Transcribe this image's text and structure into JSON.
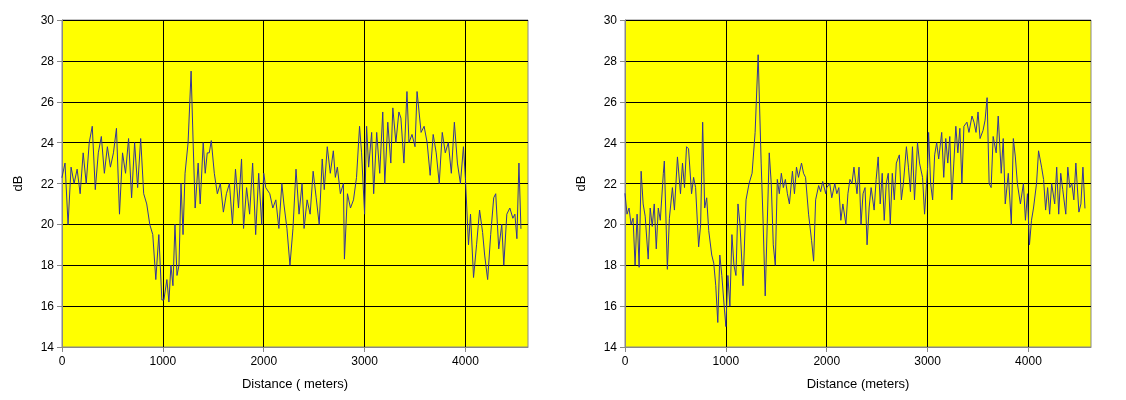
{
  "chart_data": [
    {
      "type": "line",
      "xlabel": "Distance ( meters)",
      "ylabel": "dB",
      "xlim": [
        0,
        4620
      ],
      "xticks": [
        0,
        1000,
        2000,
        3000,
        4000
      ],
      "ylim": [
        14,
        30
      ],
      "yticks": [
        14,
        16,
        18,
        20,
        22,
        24,
        26,
        28,
        30
      ],
      "grid": true,
      "marker": "none",
      "line_style": "solid",
      "series": [
        {
          "color": "#333399",
          "x": [
            0,
            30,
            60,
            90,
            120,
            150,
            180,
            210,
            240,
            270,
            300,
            330,
            360,
            390,
            420,
            450,
            480,
            510,
            540,
            570,
            600,
            630,
            660,
            690,
            720,
            750,
            780,
            810,
            840,
            870,
            900,
            930,
            960,
            990,
            1010,
            1040,
            1060,
            1080,
            1100,
            1120,
            1140,
            1160,
            1180,
            1200,
            1220,
            1250,
            1280,
            1300,
            1320,
            1350,
            1370,
            1400,
            1420,
            1440,
            1460,
            1480,
            1510,
            1540,
            1570,
            1600,
            1630,
            1660,
            1690,
            1720,
            1750,
            1780,
            1800,
            1830,
            1860,
            1890,
            1920,
            1950,
            1980,
            2000,
            2020,
            2060,
            2090,
            2120,
            2150,
            2180,
            2200,
            2230,
            2260,
            2290,
            2320,
            2350,
            2380,
            2400,
            2430,
            2460,
            2490,
            2520,
            2550,
            2580,
            2600,
            2630,
            2660,
            2690,
            2710,
            2730,
            2760,
            2790,
            2800,
            2830,
            2860,
            2890,
            2920,
            2950,
            2970,
            3000,
            3020,
            3040,
            3070,
            3090,
            3120,
            3150,
            3180,
            3200,
            3230,
            3260,
            3280,
            3310,
            3340,
            3360,
            3390,
            3420,
            3440,
            3470,
            3500,
            3520,
            3560,
            3590,
            3620,
            3650,
            3680,
            3710,
            3740,
            3770,
            3800,
            3830,
            3860,
            3890,
            3920,
            3950,
            3980,
            4000,
            4030,
            4050,
            4080,
            4110,
            4140,
            4170,
            4190,
            4220,
            4250,
            4280,
            4300,
            4330,
            4360,
            4380,
            4410,
            4440,
            4470,
            4490,
            4510,
            4530,
            4550
          ],
          "values": [
            22.3,
            23,
            20,
            22.8,
            22,
            22.7,
            21.5,
            23.5,
            22,
            24,
            24.8,
            21.7,
            23.5,
            24.3,
            22.5,
            23.8,
            22.8,
            23.5,
            24.7,
            20.5,
            23.5,
            22.5,
            24.2,
            21.3,
            24,
            21.8,
            24.2,
            21.5,
            21,
            20,
            19.5,
            17.3,
            19.5,
            16.3,
            16.3,
            17.3,
            16.2,
            18,
            17,
            20,
            17.5,
            18,
            22,
            19.5,
            22.5,
            24,
            27.5,
            24,
            20.8,
            23,
            21,
            24,
            22.5,
            23.5,
            23.5,
            24.1,
            22.5,
            21.5,
            22,
            20.6,
            21.5,
            22,
            20,
            22.7,
            20.8,
            23.2,
            19.8,
            21.8,
            20.5,
            23,
            19.5,
            22.5,
            20,
            22.5,
            21.8,
            21.5,
            20.8,
            21.2,
            19.8,
            22,
            21,
            19.8,
            18,
            19.8,
            22.7,
            20.5,
            22,
            19.8,
            21.2,
            20.5,
            22.6,
            21.3,
            20,
            23.2,
            21.7,
            23.8,
            22.5,
            23.6,
            22.3,
            22.8,
            21.5,
            22,
            18.3,
            21.5,
            20.8,
            21.2,
            22.3,
            24.8,
            23.5,
            20.5,
            24.8,
            22.8,
            24.5,
            21.5,
            24.5,
            22.5,
            25.5,
            22,
            25,
            23,
            25.7,
            24,
            25.5,
            25.2,
            23,
            26.5,
            24,
            24.4,
            23.8,
            26.5,
            24.5,
            24.8,
            24,
            22.4,
            24.4,
            23.5,
            22,
            24.5,
            23.5,
            24,
            22.5,
            25,
            23,
            22,
            23.8,
            22.2,
            19,
            20.5,
            17.4,
            19,
            20.7,
            19.6,
            18.5,
            17.3,
            19.5,
            21.3,
            21.5,
            18.8,
            20,
            18,
            20.5,
            20.8,
            20.3,
            20.5,
            19.3,
            23,
            19.8
          ]
        }
      ]
    },
    {
      "type": "line",
      "xlabel": "Distance (meters)",
      "ylabel": "dB",
      "xlim": [
        0,
        4620
      ],
      "xticks": [
        0,
        1000,
        2000,
        3000,
        4000
      ],
      "ylim": [
        14,
        30
      ],
      "yticks": [
        14,
        16,
        18,
        20,
        22,
        24,
        26,
        28,
        30
      ],
      "grid": true,
      "marker": "none",
      "line_style": "solid",
      "series": [
        {
          "color": "#333399",
          "x": [
            0,
            20,
            40,
            60,
            80,
            100,
            120,
            140,
            160,
            180,
            200,
            230,
            250,
            270,
            290,
            310,
            330,
            350,
            380,
            390,
            420,
            440,
            470,
            490,
            520,
            550,
            570,
            590,
            610,
            630,
            660,
            680,
            700,
            730,
            750,
            770,
            790,
            810,
            830,
            860,
            880,
            900,
            920,
            940,
            960,
            980,
            1000,
            1020,
            1040,
            1060,
            1080,
            1100,
            1120,
            1140,
            1170,
            1200,
            1230,
            1260,
            1290,
            1320,
            1350,
            1370,
            1390,
            1410,
            1430,
            1450,
            1470,
            1490,
            1510,
            1530,
            1550,
            1570,
            1590,
            1610,
            1630,
            1660,
            1680,
            1700,
            1720,
            1750,
            1770,
            1790,
            1820,
            1850,
            1870,
            1890,
            1920,
            1940,
            1960,
            1990,
            2000,
            2030,
            2050,
            2080,
            2100,
            2120,
            2140,
            2160,
            2190,
            2210,
            2230,
            2250,
            2270,
            2300,
            2320,
            2340,
            2360,
            2380,
            2400,
            2420,
            2440,
            2470,
            2490,
            2510,
            2530,
            2550,
            2570,
            2590,
            2610,
            2630,
            2650,
            2670,
            2690,
            2720,
            2740,
            2760,
            2790,
            2810,
            2830,
            2850,
            2870,
            2900,
            2920,
            2950,
            2970,
            3000,
            3010,
            3030,
            3050,
            3070,
            3090,
            3110,
            3140,
            3160,
            3180,
            3200,
            3220,
            3240,
            3260,
            3280,
            3300,
            3320,
            3340,
            3360,
            3390,
            3410,
            3440,
            3460,
            3480,
            3500,
            3520,
            3550,
            3570,
            3590,
            3610,
            3630,
            3650,
            3680,
            3700,
            3730,
            3750,
            3770,
            3800,
            3830,
            3850,
            3870,
            3890,
            3920,
            3950,
            3970,
            3990,
            4010,
            4030,
            4050,
            4080,
            4100,
            4130,
            4150,
            4170,
            4190,
            4210,
            4230,
            4260,
            4280,
            4300,
            4320,
            4340,
            4370,
            4390,
            4410,
            4430,
            4450,
            4470,
            4500,
            4520,
            4540,
            4560
          ],
          "values": [
            21.5,
            20.5,
            20.8,
            20,
            20.3,
            18,
            20.5,
            17.9,
            22.6,
            21,
            20.4,
            18.3,
            20.8,
            19.9,
            21,
            18.8,
            20.8,
            20.2,
            22.5,
            23.1,
            17.8,
            20.3,
            21.8,
            20.7,
            23.3,
            21.5,
            23,
            21.8,
            23.8,
            23.7,
            21.5,
            22.3,
            21.8,
            18.9,
            20,
            25,
            20.8,
            21.3,
            19.7,
            18.5,
            18.1,
            17,
            15.2,
            18.5,
            17.5,
            16.2,
            15,
            17.5,
            16,
            19.5,
            18,
            17.5,
            21,
            20,
            17,
            21.2,
            22,
            22.5,
            24.5,
            28.3,
            23,
            20,
            16.5,
            20,
            23.5,
            22,
            19,
            18,
            22.2,
            21.5,
            22.5,
            21.8,
            22.2,
            21.5,
            21,
            22.6,
            21.5,
            22.8,
            22.3,
            23,
            22.5,
            22.3,
            20.5,
            19.2,
            18.2,
            21.2,
            21.9,
            21.6,
            22.1,
            21.5,
            21.8,
            22,
            21.3,
            22,
            21.5,
            21.8,
            20.2,
            21,
            20,
            21.5,
            22.2,
            22,
            22.8,
            21.5,
            22.8,
            20,
            21.5,
            21.8,
            19,
            20.8,
            21.8,
            20.7,
            22.2,
            23.3,
            21,
            22.5,
            20.2,
            22,
            22.5,
            20,
            22.5,
            21.2,
            23,
            23.4,
            21.2,
            22,
            23.8,
            22.8,
            21.6,
            23.8,
            21.2,
            24,
            23,
            22.3,
            20.5,
            22.8,
            24.5,
            22,
            21.2,
            23.4,
            24,
            23.2,
            24.5,
            22.3,
            24.2,
            23,
            24.3,
            21.2,
            23,
            24.8,
            23.5,
            24.7,
            22,
            24.8,
            25,
            24.5,
            25.3,
            25,
            24.5,
            25.5,
            24.2,
            24.6,
            25.1,
            26.2,
            22,
            21.8,
            24.3,
            23.5,
            25.3,
            22.5,
            24.2,
            21,
            22.5,
            20,
            24.2,
            23.3,
            22,
            21,
            22,
            20.2,
            21.5,
            19,
            20.2,
            20.8,
            22,
            23.6,
            22.8,
            22.2,
            20.7,
            21.8,
            20.5,
            22,
            21,
            22.8,
            20.5,
            22.5,
            21.7,
            20.5,
            22.8,
            21.8,
            22,
            21.2,
            23,
            20.6,
            21,
            22.8,
            20.8
          ]
        }
      ]
    }
  ]
}
